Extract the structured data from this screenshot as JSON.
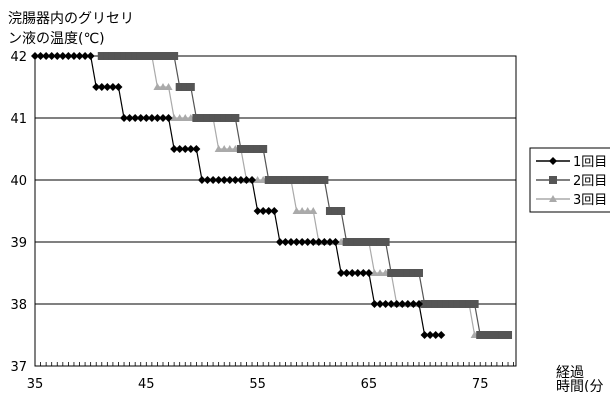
{
  "chart_data": {
    "type": "line",
    "ylabel_lines": [
      "浣腸器内のグリセリ",
      "ン液の温度(℃)"
    ],
    "xlabel_lines": [
      "経過",
      "時間(分"
    ],
    "xlim": [
      35,
      78
    ],
    "ylim": [
      37,
      42
    ],
    "x_ticks": [
      35,
      45,
      55,
      65,
      75
    ],
    "y_ticks": [
      37,
      38,
      39,
      40,
      41,
      42
    ],
    "grid": "horizontal",
    "legend_position": "right",
    "series": [
      {
        "name": "1回目",
        "color": "#000000",
        "marker": "diamond",
        "points": [
          [
            35,
            42
          ],
          [
            35.5,
            42
          ],
          [
            36,
            42
          ],
          [
            36.5,
            42
          ],
          [
            37,
            42
          ],
          [
            37.5,
            42
          ],
          [
            38,
            42
          ],
          [
            38.5,
            42
          ],
          [
            39,
            42
          ],
          [
            39.5,
            42
          ],
          [
            40,
            42
          ],
          [
            40.5,
            41.5
          ],
          [
            41,
            41.5
          ],
          [
            41.5,
            41.5
          ],
          [
            42,
            41.5
          ],
          [
            42.5,
            41.5
          ],
          [
            43,
            41
          ],
          [
            43.5,
            41
          ],
          [
            44,
            41
          ],
          [
            44.5,
            41
          ],
          [
            45,
            41
          ],
          [
            45.5,
            41
          ],
          [
            46,
            41
          ],
          [
            46.5,
            41
          ],
          [
            47,
            41
          ],
          [
            47.5,
            40.5
          ],
          [
            48,
            40.5
          ],
          [
            48.5,
            40.5
          ],
          [
            49,
            40.5
          ],
          [
            49.5,
            40.5
          ],
          [
            50,
            40
          ],
          [
            50.5,
            40
          ],
          [
            51,
            40
          ],
          [
            51.5,
            40
          ],
          [
            52,
            40
          ],
          [
            52.5,
            40
          ],
          [
            53,
            40
          ],
          [
            53.5,
            40
          ],
          [
            54,
            40
          ],
          [
            54.5,
            40
          ],
          [
            55,
            39.5
          ],
          [
            55.5,
            39.5
          ],
          [
            56,
            39.5
          ],
          [
            56.5,
            39.5
          ],
          [
            57,
            39
          ],
          [
            57.5,
            39
          ],
          [
            58,
            39
          ],
          [
            58.5,
            39
          ],
          [
            59,
            39
          ],
          [
            59.5,
            39
          ],
          [
            60,
            39
          ],
          [
            60.5,
            39
          ],
          [
            61,
            39
          ],
          [
            61.5,
            39
          ],
          [
            62,
            39
          ],
          [
            62.5,
            38.5
          ],
          [
            63,
            38.5
          ],
          [
            63.5,
            38.5
          ],
          [
            64,
            38.5
          ],
          [
            64.5,
            38.5
          ],
          [
            65,
            38.5
          ],
          [
            65.5,
            38
          ],
          [
            66,
            38
          ],
          [
            66.5,
            38
          ],
          [
            67,
            38
          ],
          [
            67.5,
            38
          ],
          [
            68,
            38
          ],
          [
            68.5,
            38
          ],
          [
            69,
            38
          ],
          [
            69.5,
            38
          ],
          [
            70,
            37.5
          ],
          [
            70.5,
            37.5
          ],
          [
            71,
            37.5
          ],
          [
            71.5,
            37.5
          ]
        ]
      },
      {
        "name": "2回目",
        "color": "#555555",
        "marker": "square",
        "points": [
          [
            41,
            42
          ],
          [
            41.5,
            42
          ],
          [
            42,
            42
          ],
          [
            42.5,
            42
          ],
          [
            43,
            42
          ],
          [
            43.5,
            42
          ],
          [
            44,
            42
          ],
          [
            44.5,
            42
          ],
          [
            45,
            42
          ],
          [
            45.5,
            42
          ],
          [
            46,
            42
          ],
          [
            46.5,
            42
          ],
          [
            47,
            42
          ],
          [
            47.5,
            42
          ],
          [
            48,
            41.5
          ],
          [
            48.5,
            41.5
          ],
          [
            49,
            41.5
          ],
          [
            49.5,
            41
          ],
          [
            50,
            41
          ],
          [
            50.5,
            41
          ],
          [
            51,
            41
          ],
          [
            51.5,
            41
          ],
          [
            52,
            41
          ],
          [
            52.5,
            41
          ],
          [
            53,
            41
          ],
          [
            53.5,
            40.5
          ],
          [
            54,
            40.5
          ],
          [
            54.5,
            40.5
          ],
          [
            55,
            40.5
          ],
          [
            55.5,
            40.5
          ],
          [
            56,
            40
          ],
          [
            56.5,
            40
          ],
          [
            57,
            40
          ],
          [
            57.5,
            40
          ],
          [
            58,
            40
          ],
          [
            58.5,
            40
          ],
          [
            59,
            40
          ],
          [
            59.5,
            40
          ],
          [
            60,
            40
          ],
          [
            60.5,
            40
          ],
          [
            61,
            40
          ],
          [
            61.5,
            39.5
          ],
          [
            62,
            39.5
          ],
          [
            62.5,
            39.5
          ],
          [
            63,
            39
          ],
          [
            63.5,
            39
          ],
          [
            64,
            39
          ],
          [
            64.5,
            39
          ],
          [
            65,
            39
          ],
          [
            65.5,
            39
          ],
          [
            66,
            39
          ],
          [
            66.5,
            39
          ],
          [
            67,
            38.5
          ],
          [
            67.5,
            38.5
          ],
          [
            68,
            38.5
          ],
          [
            68.5,
            38.5
          ],
          [
            69,
            38.5
          ],
          [
            69.5,
            38.5
          ],
          [
            70,
            38
          ],
          [
            70.5,
            38
          ],
          [
            71,
            38
          ],
          [
            71.5,
            38
          ],
          [
            72,
            38
          ],
          [
            72.5,
            38
          ],
          [
            73,
            38
          ],
          [
            73.5,
            38
          ],
          [
            74,
            38
          ],
          [
            74.5,
            38
          ],
          [
            75,
            37.5
          ],
          [
            75.5,
            37.5
          ],
          [
            76,
            37.5
          ],
          [
            76.5,
            37.5
          ],
          [
            77,
            37.5
          ],
          [
            77.5,
            37.5
          ]
        ]
      },
      {
        "name": "3回目",
        "color": "#aaaaaa",
        "marker": "triangle",
        "points": [
          [
            41,
            42
          ],
          [
            41.5,
            42
          ],
          [
            42,
            42
          ],
          [
            42.5,
            42
          ],
          [
            43,
            42
          ],
          [
            43.5,
            42
          ],
          [
            44,
            42
          ],
          [
            44.5,
            42
          ],
          [
            45,
            42
          ],
          [
            45.5,
            42
          ],
          [
            46,
            41.5
          ],
          [
            46.5,
            41.5
          ],
          [
            47,
            41.5
          ],
          [
            47.5,
            41
          ],
          [
            48,
            41
          ],
          [
            48.5,
            41
          ],
          [
            49,
            41
          ],
          [
            49.5,
            41
          ],
          [
            50,
            41
          ],
          [
            50.5,
            41
          ],
          [
            51,
            41
          ],
          [
            51.5,
            40.5
          ],
          [
            52,
            40.5
          ],
          [
            52.5,
            40.5
          ],
          [
            53,
            40.5
          ],
          [
            53.5,
            40.5
          ],
          [
            54,
            40
          ],
          [
            54.5,
            40
          ],
          [
            55,
            40
          ],
          [
            55.5,
            40
          ],
          [
            56,
            40
          ],
          [
            56.5,
            40
          ],
          [
            57,
            40
          ],
          [
            57.5,
            40
          ],
          [
            58,
            40
          ],
          [
            58.5,
            39.5
          ],
          [
            59,
            39.5
          ],
          [
            59.5,
            39.5
          ],
          [
            60,
            39.5
          ],
          [
            60.5,
            39
          ],
          [
            61,
            39
          ],
          [
            61.5,
            39
          ],
          [
            62,
            39
          ],
          [
            62.5,
            39
          ],
          [
            63,
            39
          ],
          [
            63.5,
            39
          ],
          [
            64,
            39
          ],
          [
            64.5,
            39
          ],
          [
            65,
            39
          ],
          [
            65.5,
            38.5
          ],
          [
            66,
            38.5
          ],
          [
            66.5,
            38.5
          ],
          [
            67,
            38.5
          ],
          [
            67.5,
            38
          ],
          [
            68,
            38
          ],
          [
            68.5,
            38
          ],
          [
            69,
            38
          ],
          [
            69.5,
            38
          ],
          [
            70,
            38
          ],
          [
            70.5,
            38
          ],
          [
            71,
            38
          ],
          [
            71.5,
            38
          ],
          [
            72,
            38
          ],
          [
            72.5,
            38
          ],
          [
            73,
            38
          ],
          [
            73.5,
            38
          ],
          [
            74,
            38
          ],
          [
            74.5,
            37.5
          ],
          [
            75,
            37.5
          ],
          [
            75.5,
            37.5
          ],
          [
            76,
            37.5
          ],
          [
            76.5,
            37.5
          ],
          [
            77,
            37.5
          ]
        ]
      }
    ]
  }
}
